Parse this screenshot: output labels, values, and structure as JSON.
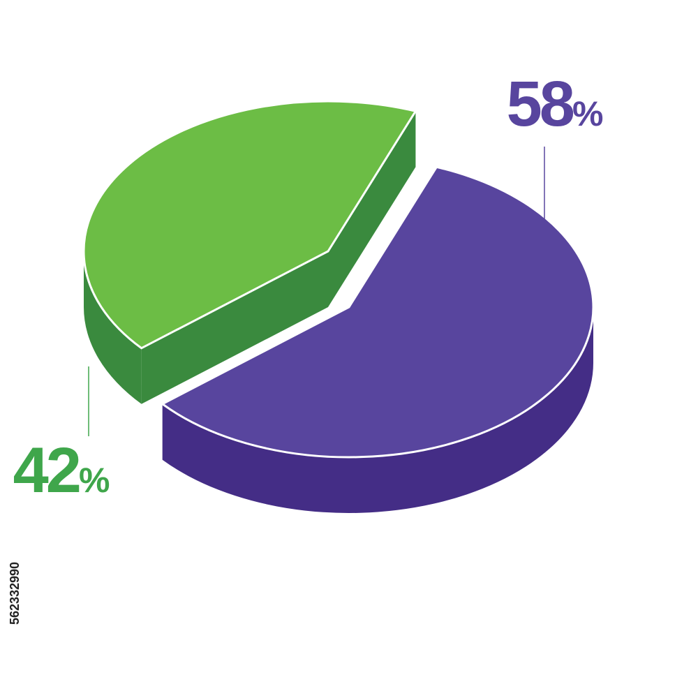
{
  "chart_data": {
    "type": "pie3d",
    "values": [
      58,
      42
    ],
    "value_labels": [
      "58%",
      "42%"
    ],
    "colors": [
      "#58459e",
      "#6cbd45"
    ],
    "side_colors": [
      "#442d86",
      "#3a8a3e"
    ]
  },
  "stock_id": "562332990"
}
